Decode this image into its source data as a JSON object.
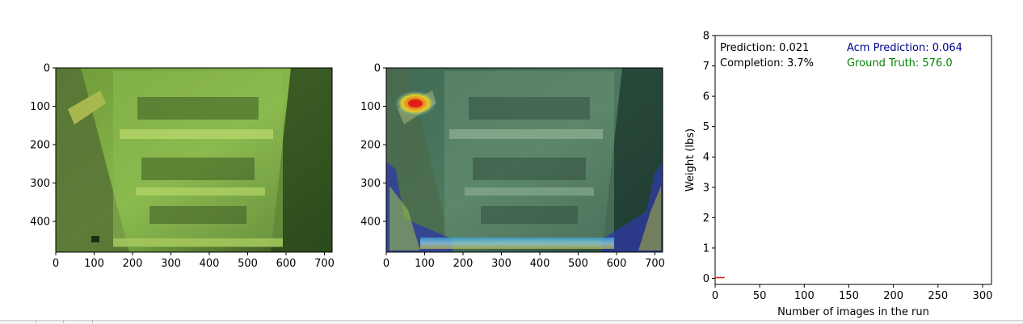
{
  "panels": [
    {
      "kind": "image",
      "xticks": [
        "0",
        "100",
        "200",
        "300",
        "400",
        "500",
        "600",
        "700"
      ],
      "yticks": [
        "0",
        "100",
        "200",
        "300",
        "400"
      ]
    },
    {
      "kind": "heatmap-overlay-image",
      "xticks": [
        "0",
        "100",
        "200",
        "300",
        "400",
        "500",
        "600",
        "700"
      ],
      "yticks": [
        "0",
        "100",
        "200",
        "300",
        "400"
      ]
    }
  ],
  "chart_data": {
    "type": "line",
    "xlabel": "Number of images in the run",
    "ylabel": "Weight (lbs)",
    "xlim": [
      0,
      310
    ],
    "ylim": [
      -0.2,
      8
    ],
    "xticks": [
      "0",
      "50",
      "100",
      "150",
      "200",
      "250",
      "300"
    ],
    "yticks": [
      "0",
      "1",
      "2",
      "3",
      "4",
      "5",
      "6",
      "7",
      "8"
    ],
    "series": [
      {
        "color": "#d62728",
        "x": [
          0,
          2,
          4,
          6,
          8,
          10
        ],
        "y": [
          0.02,
          0.03,
          0.02,
          0.03,
          0.02,
          0.03
        ]
      }
    ],
    "annotations": {
      "prediction": "Prediction: 0.021",
      "completion": "Completion: 3.7%",
      "acm_prediction": "Acm Prediction: 0.064",
      "ground_truth": "Ground Truth: 576.0"
    },
    "annotation_colors": {
      "prediction": "#000000",
      "completion": "#000000",
      "acm_prediction": "#00008b",
      "ground_truth": "#008000"
    }
  }
}
